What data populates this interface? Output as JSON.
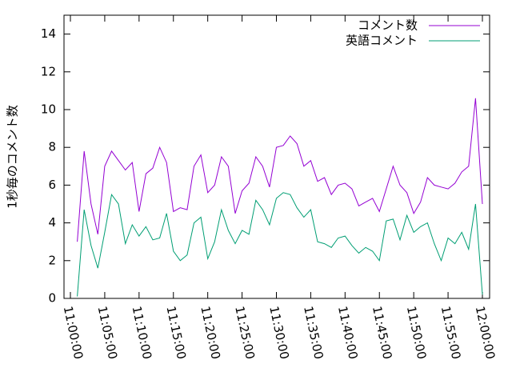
{
  "chart_data": {
    "type": "line",
    "y_label": "1秒毎のコメント数",
    "x": [
      "11:01:00",
      "11:02:00",
      "11:03:00",
      "11:04:00",
      "11:05:00",
      "11:06:00",
      "11:07:00",
      "11:08:00",
      "11:09:00",
      "11:10:00",
      "11:11:00",
      "11:12:00",
      "11:13:00",
      "11:14:00",
      "11:15:00",
      "11:16:00",
      "11:17:00",
      "11:18:00",
      "11:19:00",
      "11:20:00",
      "11:21:00",
      "11:22:00",
      "11:23:00",
      "11:24:00",
      "11:25:00",
      "11:26:00",
      "11:27:00",
      "11:28:00",
      "11:29:00",
      "11:30:00",
      "11:31:00",
      "11:32:00",
      "11:33:00",
      "11:34:00",
      "11:35:00",
      "11:36:00",
      "11:37:00",
      "11:38:00",
      "11:39:00",
      "11:40:00",
      "11:41:00",
      "11:42:00",
      "11:43:00",
      "11:44:00",
      "11:45:00",
      "11:46:00",
      "11:47:00",
      "11:48:00",
      "11:49:00",
      "11:50:00",
      "11:51:00",
      "11:52:00",
      "11:53:00",
      "11:54:00",
      "11:55:00",
      "11:56:00",
      "11:57:00",
      "11:58:00",
      "11:59:00",
      "12:00:00"
    ],
    "series": [
      {
        "name": "コメント数",
        "color": "#9400d3",
        "values": [
          3.0,
          7.8,
          5.0,
          3.4,
          7.0,
          7.8,
          7.3,
          6.8,
          7.2,
          4.6,
          6.6,
          6.9,
          8.0,
          7.2,
          4.6,
          4.8,
          4.7,
          7.0,
          7.6,
          5.6,
          6.0,
          7.5,
          7.0,
          4.5,
          5.7,
          6.1,
          7.5,
          7.0,
          5.9,
          8.0,
          8.1,
          8.6,
          8.2,
          7.0,
          7.3,
          6.2,
          6.4,
          5.5,
          6.0,
          6.1,
          5.8,
          4.9,
          5.1,
          5.3,
          4.6,
          5.8,
          7.0,
          6.0,
          5.6,
          4.5,
          5.1,
          6.4,
          6.0,
          5.9,
          5.8,
          6.1,
          6.7,
          7.0,
          10.6,
          5.0
        ]
      },
      {
        "name": "英語コメント",
        "color": "#009e73",
        "values": [
          0.1,
          4.7,
          2.8,
          1.6,
          3.5,
          5.5,
          5.0,
          2.9,
          3.9,
          3.3,
          3.8,
          3.1,
          3.2,
          4.5,
          2.5,
          2.0,
          2.3,
          4.0,
          4.3,
          2.1,
          3.0,
          4.7,
          3.6,
          2.9,
          3.6,
          3.4,
          5.2,
          4.7,
          3.9,
          5.3,
          5.6,
          5.5,
          4.8,
          4.3,
          4.7,
          3.0,
          2.9,
          2.7,
          3.2,
          3.3,
          2.8,
          2.4,
          2.7,
          2.5,
          2.0,
          4.1,
          4.2,
          3.1,
          4.4,
          3.5,
          3.8,
          4.0,
          2.9,
          2.0,
          3.2,
          2.9,
          3.5,
          2.6,
          5.0,
          0.2
        ]
      }
    ],
    "xlim": [
      "10:59:04",
      "12:01:03"
    ],
    "xticks": [
      "11:00:00",
      "11:05:00",
      "11:10:00",
      "11:15:00",
      "11:20:00",
      "11:25:00",
      "11:30:00",
      "11:35:00",
      "11:40:00",
      "11:45:00",
      "11:50:00",
      "11:55:00",
      "12:00:00"
    ],
    "ylim": [
      0,
      15
    ],
    "yticks": [
      0,
      2,
      4,
      6,
      8,
      10,
      12,
      14
    ],
    "legend": "top-right"
  }
}
